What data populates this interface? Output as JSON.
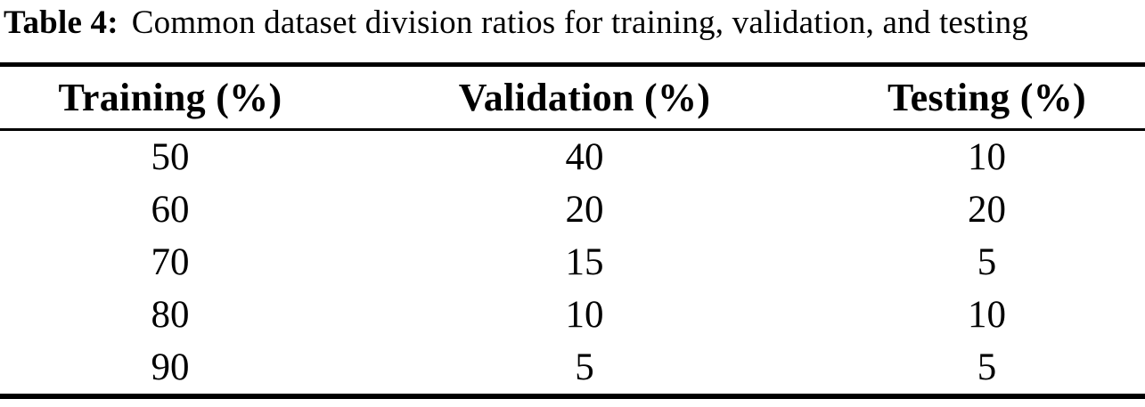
{
  "caption": {
    "label": "Table 4:",
    "text": "Common dataset division ratios for training, validation, and testing"
  },
  "table": {
    "columns": [
      "Training (%)",
      "Validation (%)",
      "Testing (%)"
    ],
    "rows": [
      [
        "50",
        "40",
        "10"
      ],
      [
        "60",
        "20",
        "20"
      ],
      [
        "70",
        "15",
        "5"
      ],
      [
        "80",
        "10",
        "10"
      ],
      [
        "90",
        "5",
        "5"
      ]
    ]
  },
  "chart_data": {
    "type": "table",
    "title": "Table 4: Common dataset division ratios for training, validation, and testing",
    "columns": [
      "Training (%)",
      "Validation (%)",
      "Testing (%)"
    ],
    "rows": [
      [
        50,
        40,
        10
      ],
      [
        60,
        20,
        20
      ],
      [
        70,
        15,
        5
      ],
      [
        80,
        10,
        10
      ],
      [
        90,
        5,
        5
      ]
    ]
  },
  "colors": {
    "text": "#000000",
    "background": "#ffffff",
    "rule": "#000000"
  }
}
